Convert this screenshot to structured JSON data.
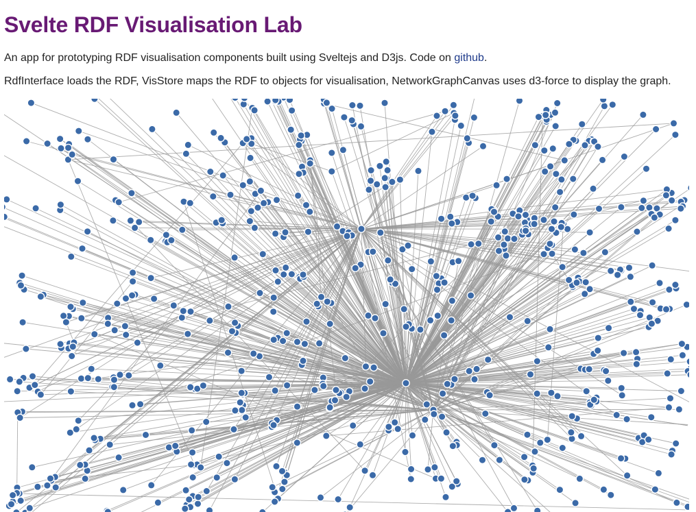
{
  "title": "Svelte RDF Visualisation Lab",
  "intro": {
    "text": "An app for prototyping RDF visualisation components built using Sveltejs and D3js. Code on ",
    "link_label": "github",
    "suffix": "."
  },
  "description": "RdfInterface loads the RDF, VisStore maps the RDF to objects for visualisation, NetworkGraphCanvas uses d3-force to display the graph.",
  "colors": {
    "title": "#681a74",
    "link": "#1e3a8a",
    "node_fill": "#3b6aa8",
    "node_stroke": "#ffffff",
    "edge": "#999999"
  },
  "graph": {
    "renderer": "d3-force",
    "hub_count": 3,
    "node_count": 720
  }
}
